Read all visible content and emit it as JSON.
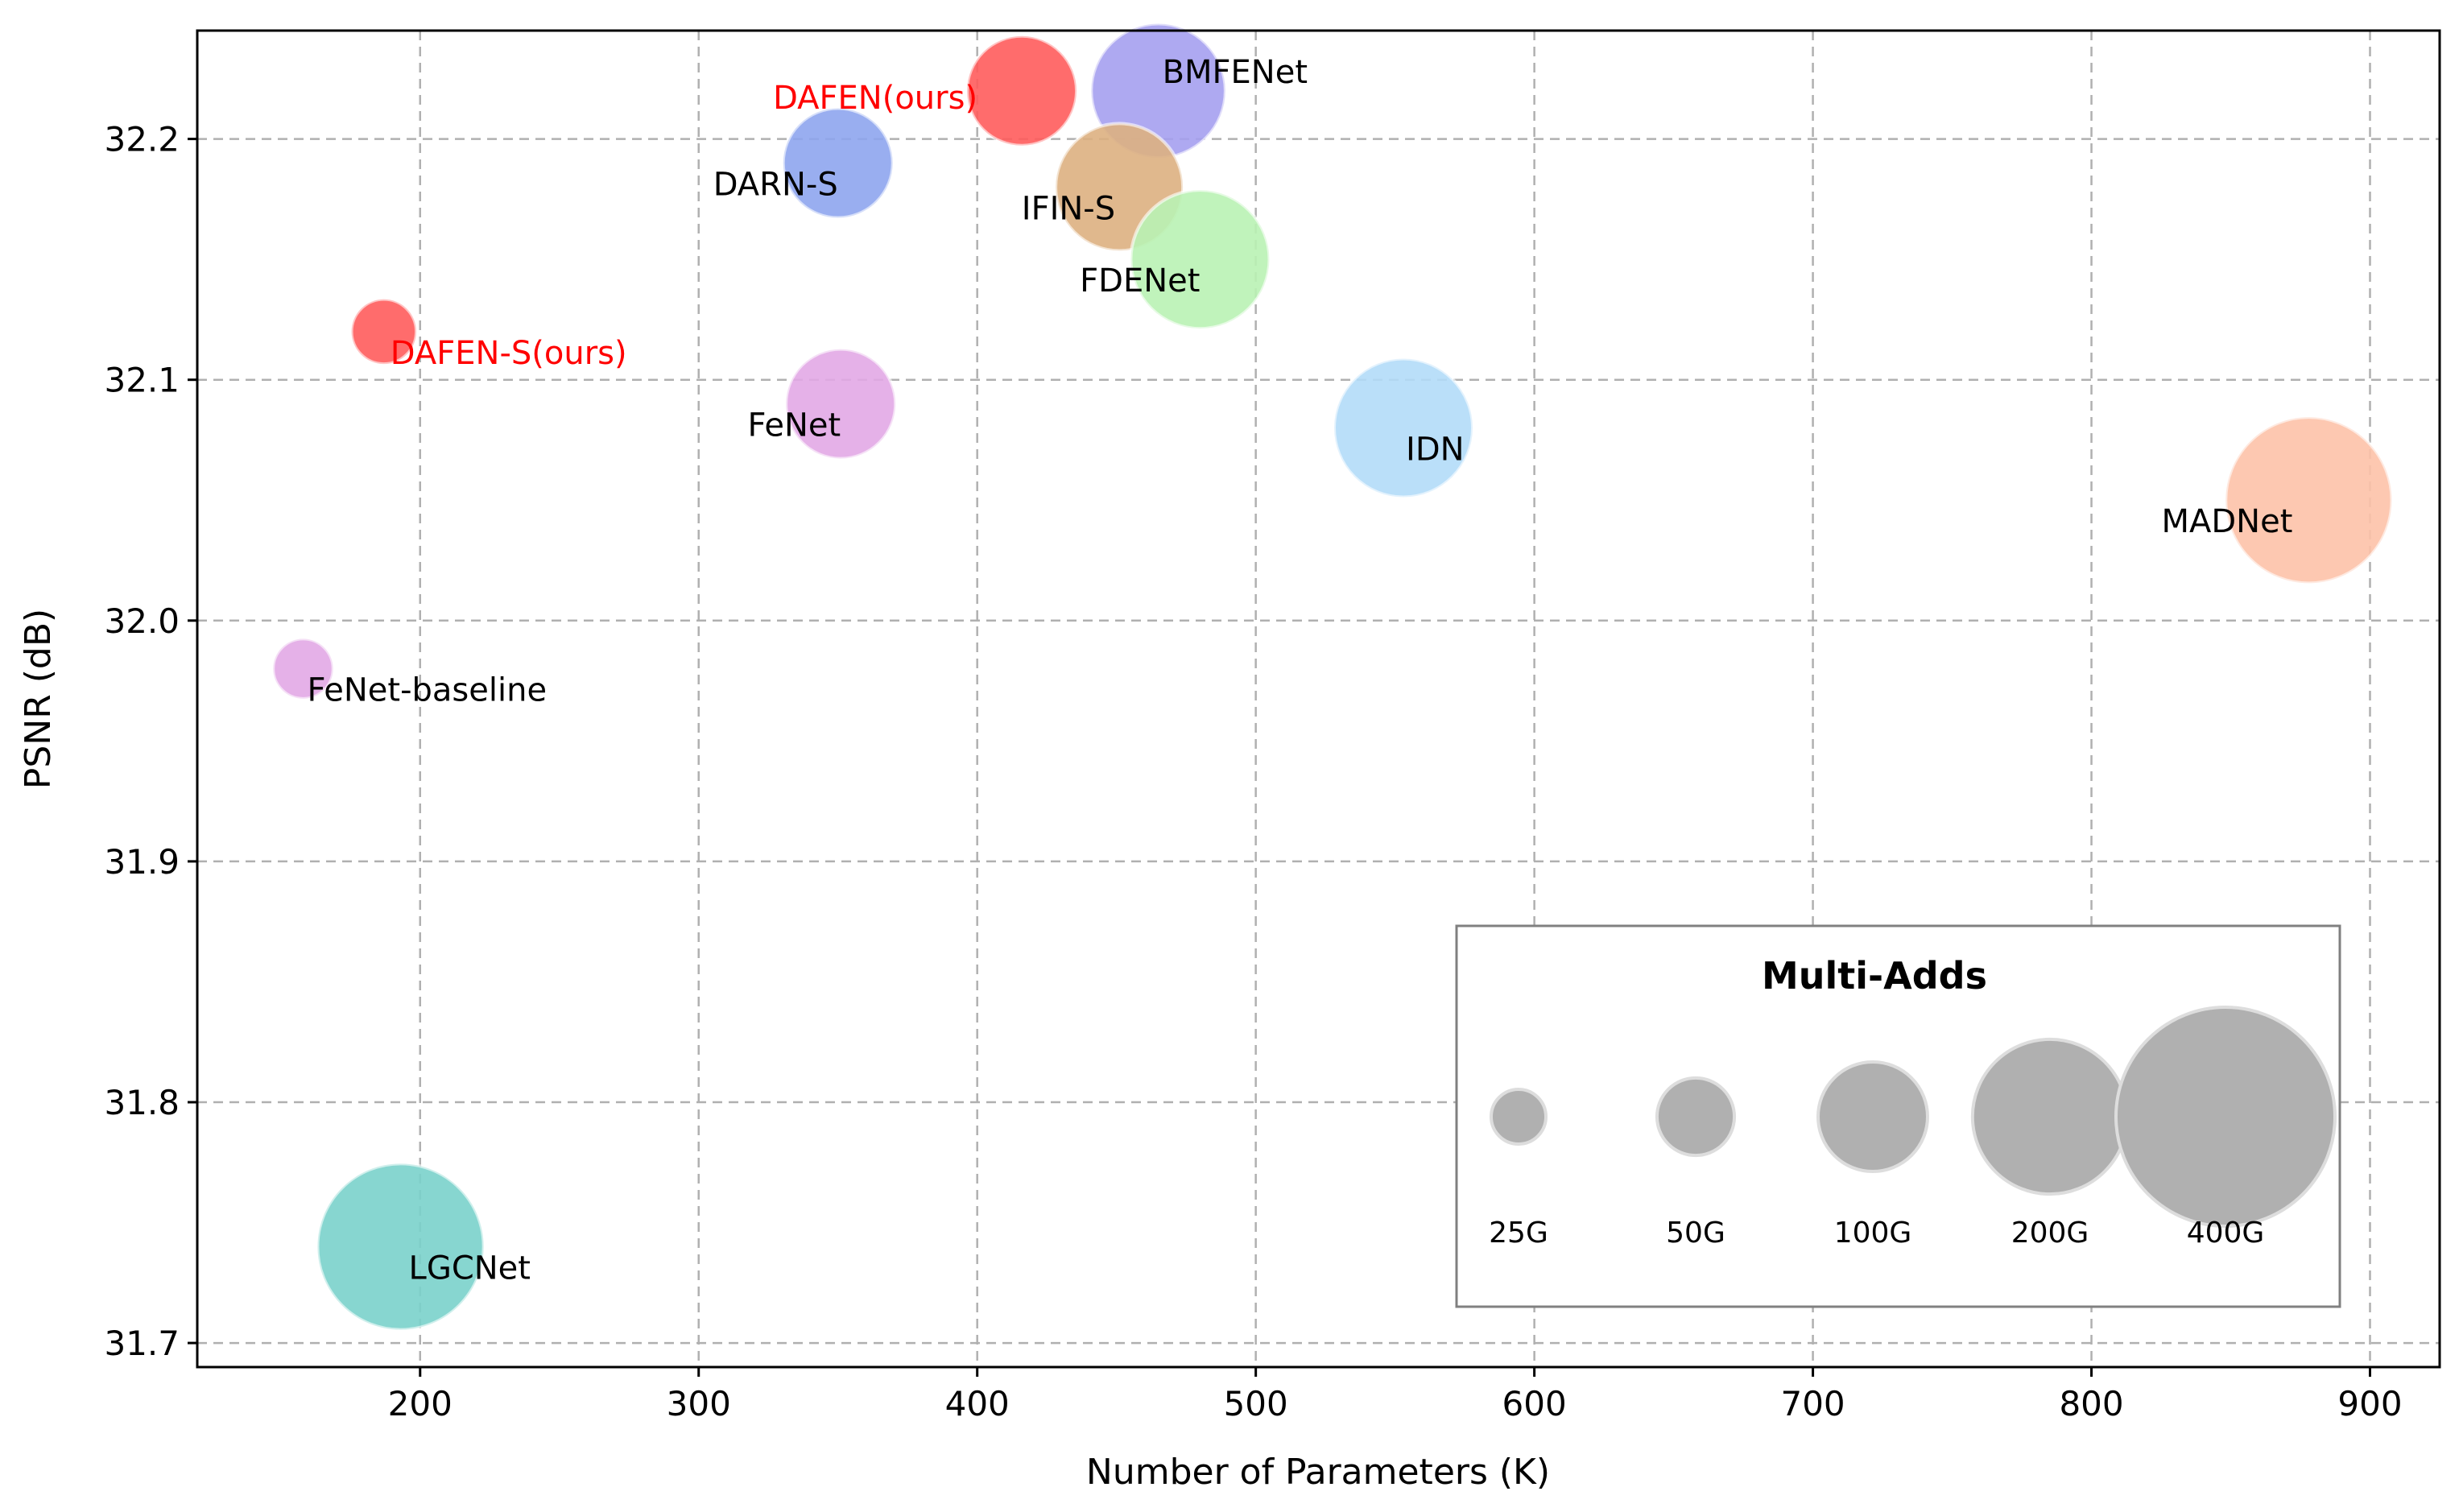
{
  "chart_data": {
    "type": "scatter",
    "xlabel": "Number of Parameters (K)",
    "ylabel": "PSNR (dB)",
    "xlim": [
      120,
      925
    ],
    "ylim": [
      31.69,
      32.245
    ],
    "xticks": [
      200,
      300,
      400,
      500,
      600,
      700,
      800,
      900
    ],
    "yticks": [
      31.7,
      31.8,
      31.9,
      32.0,
      32.1,
      32.2
    ],
    "grid": true,
    "points": [
      {
        "name": "DAFEN(ours)",
        "params": 416,
        "psnr": 32.22,
        "multi_adds_g": 100,
        "color": "#ff5c5c",
        "label_color": "#ff0000"
      },
      {
        "name": "BMFENet",
        "params": 465,
        "psnr": 32.22,
        "multi_adds_g": 150,
        "color": "#a5a0f0",
        "label_color": "#000000"
      },
      {
        "name": "DARN-S",
        "params": 350,
        "psnr": 32.19,
        "multi_adds_g": 100,
        "color": "#8ea5ee",
        "label_color": "#000000"
      },
      {
        "name": "IFIN-S",
        "params": 451,
        "psnr": 32.18,
        "multi_adds_g": 135,
        "color": "#ddb081",
        "label_color": "#000000"
      },
      {
        "name": "FDENet",
        "params": 480,
        "psnr": 32.15,
        "multi_adds_g": 160,
        "color": "#b9f2b4",
        "label_color": "#000000"
      },
      {
        "name": "DAFEN-S(ours)",
        "params": 187,
        "psnr": 32.12,
        "multi_adds_g": 35,
        "color": "#ff5c5c",
        "label_color": "#ff0000"
      },
      {
        "name": "FeNet",
        "params": 351,
        "psnr": 32.09,
        "multi_adds_g": 100,
        "color": "#e2a8e6",
        "label_color": "#000000"
      },
      {
        "name": "IDN",
        "params": 553,
        "psnr": 32.08,
        "multi_adds_g": 160,
        "color": "#b3dbf8",
        "label_color": "#000000"
      },
      {
        "name": "MADNet",
        "params": 878,
        "psnr": 32.05,
        "multi_adds_g": 230,
        "color": "#fdc2a8",
        "label_color": "#000000"
      },
      {
        "name": "FeNet-baseline",
        "params": 158,
        "psnr": 31.98,
        "multi_adds_g": 30,
        "color": "#e2a8e6",
        "label_color": "#000000"
      },
      {
        "name": "LGCNet",
        "params": 193,
        "psnr": 31.74,
        "multi_adds_g": 230,
        "color": "#7ad2cb",
        "label_color": "#000000"
      }
    ],
    "legend": {
      "title": "Multi-Adds",
      "placement": "lower-right",
      "entries": [
        {
          "label": "25G",
          "value": 25
        },
        {
          "label": "50G",
          "value": 50
        },
        {
          "label": "100G",
          "value": 100
        },
        {
          "label": "200G",
          "value": 200
        },
        {
          "label": "400G",
          "value": 400
        }
      ],
      "color": "#b0b0b0"
    }
  }
}
